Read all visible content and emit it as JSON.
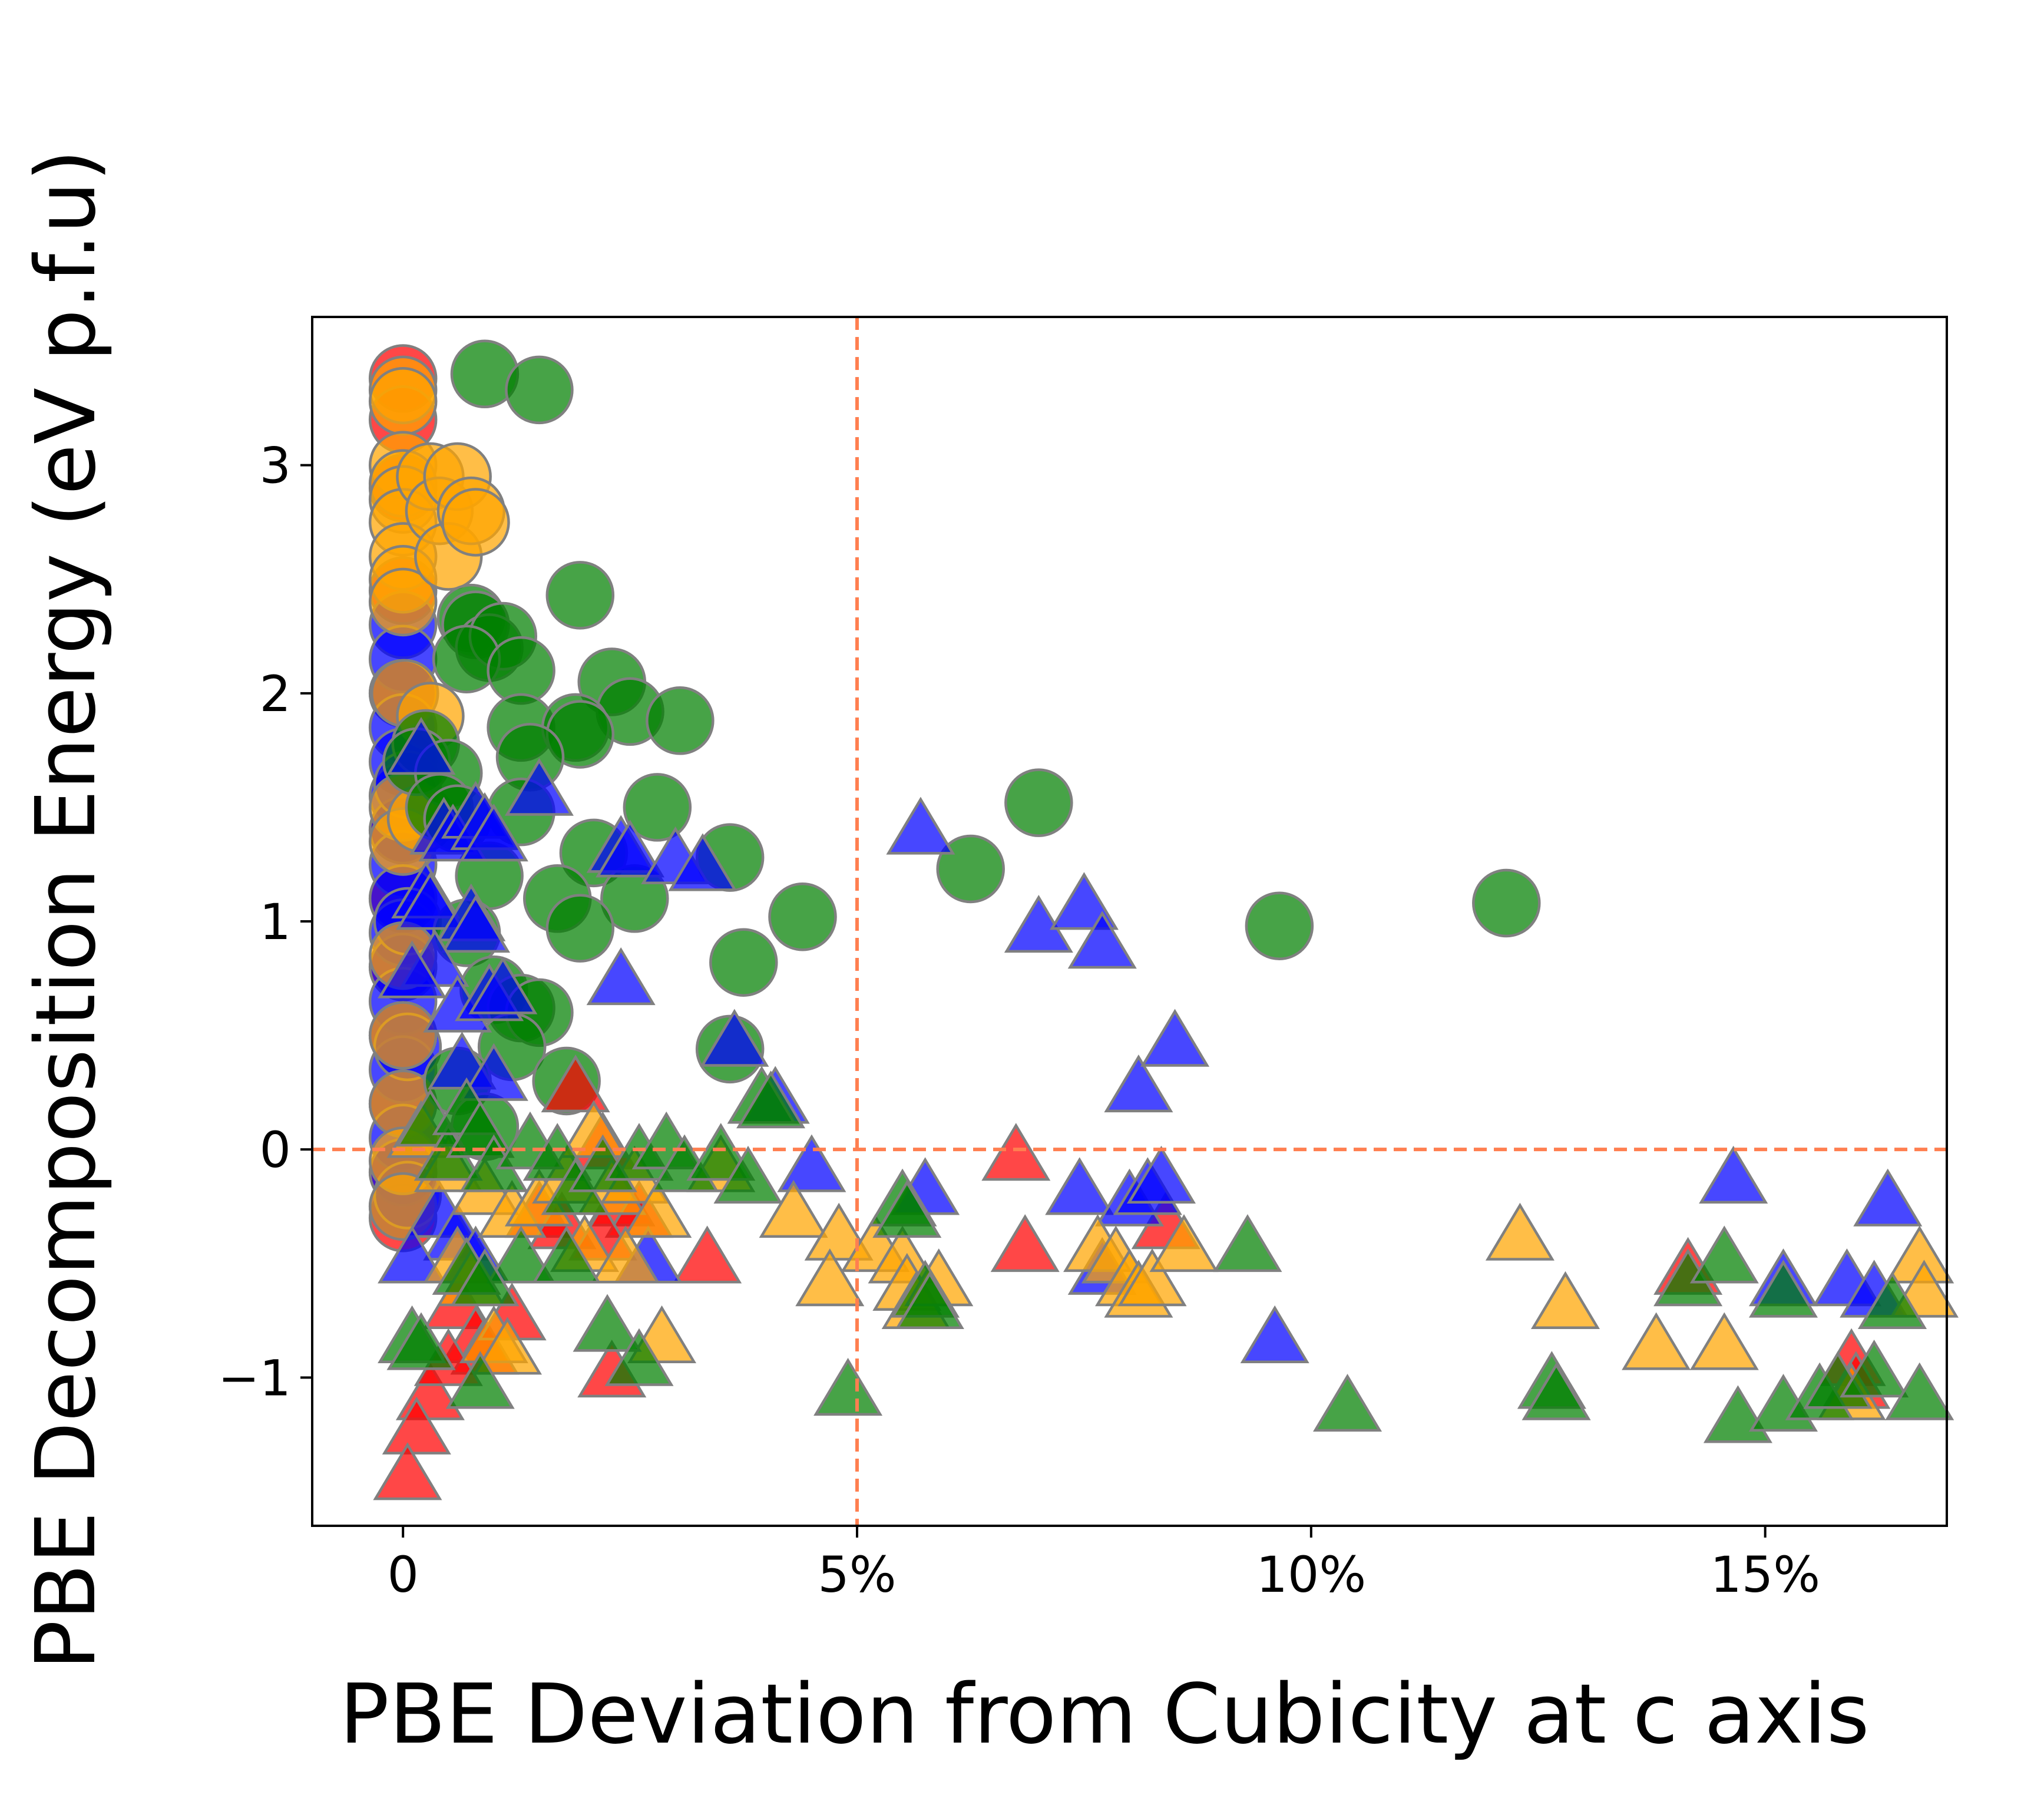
{
  "chart_data": {
    "type": "scatter",
    "xlabel": "PBE Deviation from Cubicity at c axis",
    "ylabel": "PBE Decomposition Energy (eV p.f.u)",
    "xlim": [
      -1.0,
      17.0
    ],
    "ylim": [
      -1.65,
      3.65
    ],
    "x_ticks": [
      {
        "value": 0,
        "label": "0"
      },
      {
        "value": 5,
        "label": "5%"
      },
      {
        "value": 10,
        "label": "10%"
      },
      {
        "value": 15,
        "label": "15%"
      }
    ],
    "y_ticks": [
      {
        "value": -1,
        "label": "−1"
      },
      {
        "value": 0,
        "label": "0"
      },
      {
        "value": 1,
        "label": "1"
      },
      {
        "value": 2,
        "label": "2"
      },
      {
        "value": 3,
        "label": "3"
      }
    ],
    "reference_lines": {
      "x": 5,
      "y": 0,
      "color": "#ff7f50",
      "style": "dashed"
    },
    "series": [
      {
        "marker": "circle",
        "color": "#ff0000",
        "points": [
          [
            0,
            3.38
          ],
          [
            0,
            3.2
          ],
          [
            0,
            2.9
          ],
          [
            0,
            2.45
          ],
          [
            0,
            2.0
          ],
          [
            0,
            1.4
          ],
          [
            0,
            1.1
          ],
          [
            0,
            0.8
          ],
          [
            0,
            0.5
          ],
          [
            0,
            0.2
          ],
          [
            0,
            -0.1
          ],
          [
            0,
            -0.3
          ]
        ]
      },
      {
        "marker": "circle",
        "color": "#0000ff",
        "points": [
          [
            0,
            2.3
          ],
          [
            0,
            2.15
          ],
          [
            0,
            2.0
          ],
          [
            0,
            1.85
          ],
          [
            0,
            1.7
          ],
          [
            0,
            1.55
          ],
          [
            0,
            1.4
          ],
          [
            0,
            1.25
          ],
          [
            0,
            1.1
          ],
          [
            0,
            0.95
          ],
          [
            0,
            0.8
          ],
          [
            0,
            0.65
          ],
          [
            0,
            0.5
          ],
          [
            0,
            0.35
          ],
          [
            0,
            0.2
          ],
          [
            0,
            0.05
          ],
          [
            0,
            -0.1
          ],
          [
            0,
            -0.25
          ],
          [
            0.05,
            1.6
          ],
          [
            0.05,
            1.0
          ],
          [
            0.05,
            0.45
          ],
          [
            0.05,
            -0.2
          ]
        ]
      },
      {
        "marker": "circle",
        "color": "#ffa500",
        "points": [
          [
            0,
            3.33
          ],
          [
            0,
            3.28
          ],
          [
            0,
            3.0
          ],
          [
            0,
            2.92
          ],
          [
            0,
            2.85
          ],
          [
            0,
            2.75
          ],
          [
            0,
            2.6
          ],
          [
            0,
            2.5
          ],
          [
            0,
            2.4
          ],
          [
            0.02,
            2.0
          ],
          [
            0,
            1.5
          ],
          [
            0,
            1.35
          ],
          [
            0,
            0.85
          ],
          [
            0,
            0.5
          ],
          [
            0,
            0.2
          ],
          [
            0,
            -0.05
          ],
          [
            0,
            -0.25
          ],
          [
            0.3,
            2.95
          ],
          [
            0.4,
            2.8
          ],
          [
            0.5,
            2.6
          ],
          [
            0.6,
            2.95
          ],
          [
            0.75,
            2.8
          ],
          [
            0.8,
            2.75
          ],
          [
            0.3,
            1.9
          ],
          [
            0.2,
            1.45
          ]
        ]
      },
      {
        "marker": "circle",
        "color": "#008000",
        "points": [
          [
            0.9,
            3.4
          ],
          [
            1.5,
            3.33
          ],
          [
            1.95,
            2.43
          ],
          [
            0.75,
            2.33
          ],
          [
            0.8,
            2.3
          ],
          [
            0.95,
            2.2
          ],
          [
            1.1,
            2.25
          ],
          [
            0.7,
            2.15
          ],
          [
            1.3,
            2.1
          ],
          [
            2.3,
            2.05
          ],
          [
            2.5,
            1.92
          ],
          [
            3.05,
            1.88
          ],
          [
            1.3,
            1.85
          ],
          [
            1.9,
            1.85
          ],
          [
            1.95,
            1.82
          ],
          [
            1.4,
            1.72
          ],
          [
            0.25,
            1.78
          ],
          [
            0.15,
            1.7
          ],
          [
            0.5,
            1.65
          ],
          [
            2.8,
            1.5
          ],
          [
            1.3,
            1.48
          ],
          [
            0.4,
            1.5
          ],
          [
            0.6,
            1.45
          ],
          [
            3.6,
            1.28
          ],
          [
            2.1,
            1.3
          ],
          [
            0.95,
            1.2
          ],
          [
            1.7,
            1.1
          ],
          [
            2.55,
            1.1
          ],
          [
            1.95,
            0.97
          ],
          [
            3.75,
            0.82
          ],
          [
            4.4,
            1.02
          ],
          [
            0.7,
            0.95
          ],
          [
            1.0,
            0.7
          ],
          [
            1.3,
            0.62
          ],
          [
            1.5,
            0.6
          ],
          [
            3.6,
            0.44
          ],
          [
            1.2,
            0.45
          ],
          [
            1.8,
            0.3
          ],
          [
            0.6,
            0.3
          ],
          [
            0.9,
            0.1
          ],
          [
            7.0,
            1.52
          ],
          [
            6.25,
            1.23
          ],
          [
            9.65,
            0.98
          ],
          [
            12.15,
            1.08
          ]
        ]
      },
      {
        "marker": "triangle",
        "color": "#ff0000",
        "points": [
          [
            1.9,
            0.25
          ],
          [
            2.2,
            0.0
          ],
          [
            1.5,
            -0.3
          ],
          [
            1.75,
            -0.35
          ],
          [
            2.4,
            -0.25
          ],
          [
            2.6,
            -0.3
          ],
          [
            3.35,
            -0.5
          ],
          [
            2.2,
            -0.4
          ],
          [
            0.6,
            -0.7
          ],
          [
            0.8,
            -0.85
          ],
          [
            0.9,
            -0.9
          ],
          [
            1.2,
            -0.75
          ],
          [
            0.3,
            -1.1
          ],
          [
            0.15,
            -1.25
          ],
          [
            0.05,
            -1.45
          ],
          [
            2.3,
            -1.0
          ],
          [
            6.75,
            -0.05
          ],
          [
            6.85,
            -0.45
          ],
          [
            8.4,
            -0.35
          ],
          [
            14.15,
            -0.55
          ],
          [
            15.95,
            -0.95
          ],
          [
            16.0,
            -1.05
          ],
          [
            0.5,
            -0.95
          ]
        ]
      },
      {
        "marker": "triangle",
        "color": "#0000ff",
        "points": [
          [
            0.2,
            1.73
          ],
          [
            1.5,
            1.55
          ],
          [
            0.45,
            1.38
          ],
          [
            0.55,
            1.35
          ],
          [
            0.8,
            1.45
          ],
          [
            0.9,
            1.4
          ],
          [
            1.0,
            1.35
          ],
          [
            2.4,
            1.3
          ],
          [
            2.5,
            1.28
          ],
          [
            3.0,
            1.25
          ],
          [
            3.3,
            1.22
          ],
          [
            0.25,
            1.1
          ],
          [
            0.3,
            1.05
          ],
          [
            0.75,
            1.0
          ],
          [
            0.8,
            0.95
          ],
          [
            0.35,
            0.8
          ],
          [
            0.1,
            0.75
          ],
          [
            0.6,
            0.6
          ],
          [
            0.95,
            0.65
          ],
          [
            1.1,
            0.68
          ],
          [
            2.4,
            0.72
          ],
          [
            3.65,
            0.45
          ],
          [
            0.65,
            0.35
          ],
          [
            1.0,
            0.3
          ],
          [
            4.1,
            0.2
          ],
          [
            4.5,
            -0.1
          ],
          [
            0.4,
            -0.3
          ],
          [
            0.6,
            -0.4
          ],
          [
            0.8,
            -0.5
          ],
          [
            2.7,
            -0.5
          ],
          [
            0.1,
            -0.5
          ],
          [
            5.7,
            1.38
          ],
          [
            5.75,
            -0.2
          ],
          [
            7.0,
            0.95
          ],
          [
            7.5,
            1.05
          ],
          [
            7.7,
            0.88
          ],
          [
            8.1,
            0.25
          ],
          [
            8.5,
            0.45
          ],
          [
            7.45,
            -0.2
          ],
          [
            8.0,
            -0.25
          ],
          [
            8.2,
            -0.2
          ],
          [
            8.35,
            -0.15
          ],
          [
            7.7,
            -0.55
          ],
          [
            9.6,
            -0.85
          ],
          [
            14.65,
            -0.15
          ],
          [
            16.35,
            -0.25
          ],
          [
            15.9,
            -0.6
          ],
          [
            16.2,
            -0.65
          ],
          [
            15.2,
            -0.6
          ]
        ]
      },
      {
        "marker": "triangle",
        "color": "#ffa500",
        "points": [
          [
            0.2,
            0.05
          ],
          [
            0.5,
            -0.1
          ],
          [
            0.9,
            -0.2
          ],
          [
            1.2,
            -0.3
          ],
          [
            1.5,
            -0.25
          ],
          [
            1.8,
            -0.15
          ],
          [
            2.1,
            0.05
          ],
          [
            2.3,
            -0.2
          ],
          [
            2.55,
            -0.15
          ],
          [
            2.8,
            -0.3
          ],
          [
            3.5,
            -0.1
          ],
          [
            4.3,
            -0.3
          ],
          [
            4.8,
            -0.4
          ],
          [
            2.0,
            -0.45
          ],
          [
            2.45,
            -0.5
          ],
          [
            0.6,
            -0.5
          ],
          [
            0.75,
            -0.6
          ],
          [
            1.0,
            -0.85
          ],
          [
            1.15,
            -0.9
          ],
          [
            2.85,
            -0.85
          ],
          [
            4.7,
            -0.6
          ],
          [
            5.2,
            -0.45
          ],
          [
            5.5,
            -0.5
          ],
          [
            5.55,
            -0.62
          ],
          [
            5.65,
            -0.7
          ],
          [
            5.9,
            -0.6
          ],
          [
            7.65,
            -0.45
          ],
          [
            7.85,
            -0.5
          ],
          [
            8.0,
            -0.6
          ],
          [
            8.1,
            -0.65
          ],
          [
            8.25,
            -0.6
          ],
          [
            8.6,
            -0.45
          ],
          [
            12.3,
            -0.4
          ],
          [
            12.8,
            -0.7
          ],
          [
            13.8,
            -0.88
          ],
          [
            14.55,
            -0.88
          ],
          [
            15.95,
            -1.1
          ],
          [
            16.7,
            -0.5
          ],
          [
            16.75,
            -0.65
          ]
        ]
      },
      {
        "marker": "triangle",
        "color": "#008000",
        "points": [
          [
            0.3,
            0.1
          ],
          [
            0.5,
            -0.05
          ],
          [
            0.7,
            0.15
          ],
          [
            0.85,
            0.05
          ],
          [
            1.0,
            -0.1
          ],
          [
            1.4,
            0.0
          ],
          [
            1.7,
            -0.05
          ],
          [
            1.9,
            -0.2
          ],
          [
            2.2,
            -0.1
          ],
          [
            2.6,
            -0.05
          ],
          [
            2.9,
            0.0
          ],
          [
            3.1,
            -0.1
          ],
          [
            3.5,
            -0.05
          ],
          [
            3.8,
            -0.15
          ],
          [
            3.95,
            0.2
          ],
          [
            4.05,
            0.18
          ],
          [
            1.3,
            -0.5
          ],
          [
            1.8,
            -0.5
          ],
          [
            0.7,
            -0.55
          ],
          [
            0.9,
            -0.6
          ],
          [
            0.1,
            -0.85
          ],
          [
            0.2,
            -0.88
          ],
          [
            0.85,
            -1.05
          ],
          [
            2.25,
            -0.8
          ],
          [
            2.6,
            -0.95
          ],
          [
            4.9,
            -1.08
          ],
          [
            5.5,
            -0.25
          ],
          [
            5.55,
            -0.3
          ],
          [
            5.75,
            -0.65
          ],
          [
            5.8,
            -0.7
          ],
          [
            9.3,
            -0.45
          ],
          [
            10.4,
            -1.15
          ],
          [
            12.65,
            -1.05
          ],
          [
            12.7,
            -1.1
          ],
          [
            14.15,
            -0.6
          ],
          [
            14.55,
            -0.5
          ],
          [
            15.2,
            -0.65
          ],
          [
            14.7,
            -1.2
          ],
          [
            15.2,
            -1.15
          ],
          [
            15.6,
            -1.1
          ],
          [
            15.8,
            -1.05
          ],
          [
            16.2,
            -1.0
          ],
          [
            16.4,
            -0.7
          ],
          [
            16.7,
            -1.1
          ]
        ]
      }
    ]
  }
}
